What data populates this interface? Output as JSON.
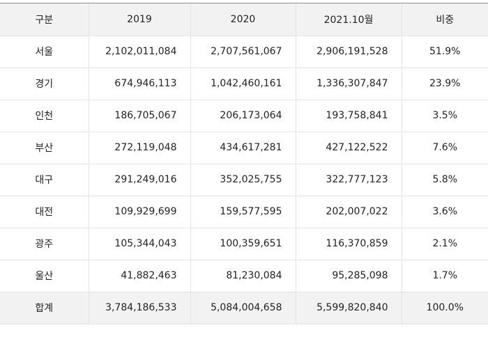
{
  "table": {
    "headers": [
      "구분",
      "2019",
      "2020",
      "2021.10월",
      "비중"
    ],
    "rows": [
      [
        "서울",
        "2,102,011,084",
        "2,707,561,067",
        "2,906,191,528",
        "51.9%"
      ],
      [
        "경기",
        "674,946,113",
        "1,042,460,161",
        "1,336,307,847",
        "23.9%"
      ],
      [
        "인천",
        "186,705,067",
        "206,173,064",
        "193,758,841",
        "3.5%"
      ],
      [
        "부산",
        "272,119,048",
        "434,617,281",
        "427,122,522",
        "7.6%"
      ],
      [
        "대구",
        "291,249,016",
        "352,025,755",
        "322,777,123",
        "5.8%"
      ],
      [
        "대전",
        "109,929,699",
        "159,577,595",
        "202,007,022",
        "3.6%"
      ],
      [
        "광주",
        "105,344,043",
        "100,359,651",
        "116,370,859",
        "2.1%"
      ],
      [
        "울산",
        "41,882,463",
        "81,230,084",
        "95,285,098",
        "1.7%"
      ]
    ],
    "total": [
      "합계",
      "3,784,186,533",
      "5,084,004,658",
      "5,599,820,840",
      "100.0%"
    ]
  }
}
